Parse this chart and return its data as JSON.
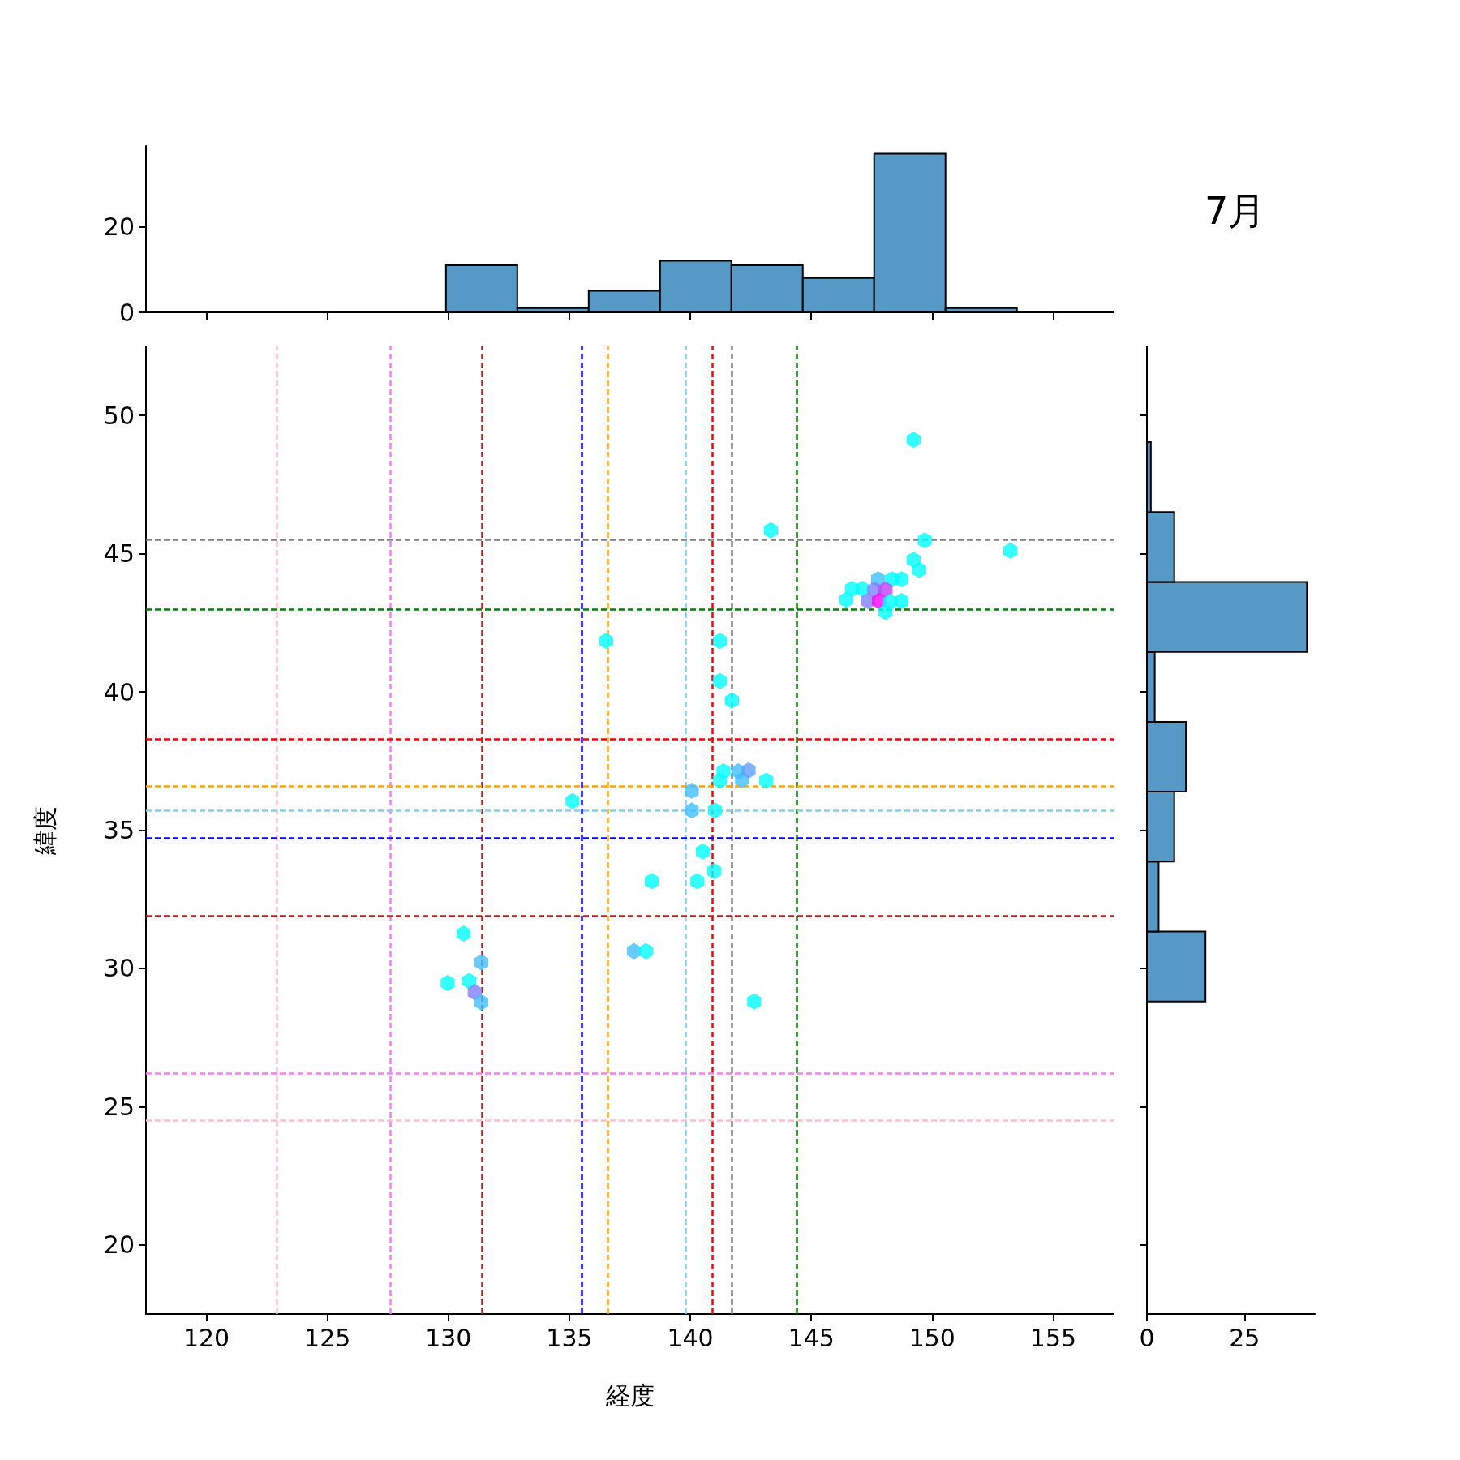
{
  "chart_data": [
    {
      "type": "histogram",
      "bins": [
        129.9,
        132.85,
        135.8,
        138.75,
        141.7,
        144.65,
        147.6,
        150.55,
        153.5
      ],
      "values": [
        11,
        1,
        5,
        12,
        11,
        8,
        37,
        1
      ],
      "color": "#5799c6",
      "xlim": [
        117.5,
        157.5
      ],
      "xticks": [
        120,
        125,
        130,
        135,
        140,
        145,
        150,
        155
      ],
      "ylim": [
        0,
        38.8
      ],
      "yticks": [
        0,
        20
      ],
      "tick_labels": "y"
    },
    {
      "type": "scatter",
      "xlabel": "経度",
      "ylabel": "緯度",
      "xlim": [
        117.5,
        157.5
      ],
      "ylim": [
        17.5,
        52.5
      ],
      "xticks": [
        120,
        125,
        130,
        135,
        140,
        145,
        150,
        155
      ],
      "yticks": [
        20,
        25,
        30,
        35,
        40,
        45,
        50
      ],
      "x": [
        149.23,
        143.33,
        149.69,
        153.23,
        149.23,
        149.46,
        147.76,
        148.34,
        148.73,
        146.68,
        147.11,
        147.61,
        148.07,
        146.45,
        147.34,
        147.8,
        148.26,
        148.73,
        148.07,
        136.52,
        141.22,
        141.22,
        141.72,
        141.37,
        141.22,
        141.99,
        142.14,
        142.41,
        143.14,
        141.02,
        140.06,
        135.13,
        140.06,
        140.52,
        138.41,
        140.29,
        140.99,
        130.63,
        131.36,
        137.67,
        138.17,
        129.97,
        130.86,
        131.09,
        131.36,
        142.64
      ],
      "values": [
        49.12,
        45.85,
        45.48,
        45.11,
        44.78,
        44.41,
        44.07,
        44.07,
        44.07,
        43.73,
        43.73,
        43.7,
        43.7,
        43.33,
        43.29,
        43.29,
        43.26,
        43.29,
        42.89,
        41.84,
        41.84,
        40.39,
        39.69,
        37.13,
        36.79,
        37.13,
        36.82,
        37.16,
        36.79,
        35.71,
        36.42,
        36.05,
        35.71,
        34.23,
        33.15,
        33.15,
        33.52,
        31.26,
        30.22,
        30.62,
        30.62,
        29.47,
        29.54,
        29.14,
        28.77,
        28.8
      ],
      "colors": [
        "#00ffff",
        "#00ffff",
        "#00ffff",
        "#00ffff",
        "#00ffff",
        "#00ffff",
        "#40bfff",
        "#00ffff",
        "#00ffff",
        "#00ffff",
        "#00ffff",
        "#8080ff",
        "#c040ff",
        "#00ffff",
        "#8080ff",
        "#ff00ff",
        "#00ffff",
        "#00ffff",
        "#00ffff",
        "#00ffff",
        "#00ffff",
        "#00ffff",
        "#00ffff",
        "#00ffff",
        "#00ffff",
        "#40bfff",
        "#40bfff",
        "#60a0ff",
        "#00ffff",
        "#00ffff",
        "#40bfff",
        "#00ffff",
        "#40bfff",
        "#00ffff",
        "#00ffff",
        "#00ffff",
        "#00ffff",
        "#00ffff",
        "#40bfff",
        "#40bfff",
        "#00ffff",
        "#00ffff",
        "#00ffff",
        "#8080ff",
        "#40bfff",
        "#00ffff"
      ],
      "ref_lines": [
        {
          "axis": "x",
          "value": 122.9,
          "color": "#ffc0cb",
          "line_style": "dashed"
        },
        {
          "axis": "x",
          "value": 127.6,
          "color": "#ee82ee",
          "line_style": "dashed"
        },
        {
          "axis": "x",
          "value": 131.4,
          "color": "#b22222",
          "line_style": "dashed"
        },
        {
          "axis": "x",
          "value": 135.5,
          "color": "#0000ff",
          "line_style": "dashed"
        },
        {
          "axis": "x",
          "value": 136.6,
          "color": "#ffa500",
          "line_style": "dashed"
        },
        {
          "axis": "x",
          "value": 139.8,
          "color": "#87ceeb",
          "line_style": "dashed"
        },
        {
          "axis": "x",
          "value": 140.9,
          "color": "#ff0000",
          "line_style": "dashed"
        },
        {
          "axis": "x",
          "value": 141.7,
          "color": "#808080",
          "line_style": "dashed"
        },
        {
          "axis": "x",
          "value": 144.4,
          "color": "#008000",
          "line_style": "dashed"
        },
        {
          "axis": "y",
          "value": 24.5,
          "color": "#ffc0cb",
          "line_style": "dashed"
        },
        {
          "axis": "y",
          "value": 26.2,
          "color": "#ee82ee",
          "line_style": "dashed"
        },
        {
          "axis": "y",
          "value": 31.9,
          "color": "#b22222",
          "line_style": "dashed"
        },
        {
          "axis": "y",
          "value": 34.7,
          "color": "#0000ff",
          "line_style": "dashed"
        },
        {
          "axis": "y",
          "value": 36.6,
          "color": "#ffa500",
          "line_style": "dashed"
        },
        {
          "axis": "y",
          "value": 35.7,
          "color": "#87ceeb",
          "line_style": "dashed"
        },
        {
          "axis": "y",
          "value": 38.3,
          "color": "#ff0000",
          "line_style": "dashed"
        },
        {
          "axis": "y",
          "value": 45.5,
          "color": "#808080",
          "line_style": "dashed"
        },
        {
          "axis": "y",
          "value": 43.0,
          "color": "#008000",
          "line_style": "dashed"
        }
      ]
    },
    {
      "type": "histogram",
      "title": "7月",
      "orientation": "horizontal",
      "bins": [
        28.8,
        31.33,
        33.86,
        36.39,
        38.92,
        41.45,
        43.98,
        46.51,
        49.04
      ],
      "values": [
        15,
        3,
        7,
        10,
        2,
        41,
        7,
        1
      ],
      "color": "#5799c6",
      "xlim": [
        0,
        43
      ],
      "xticks": [
        0,
        25
      ],
      "ylim": [
        17.5,
        52.5
      ],
      "yticks": [
        20,
        25,
        30,
        35,
        40,
        45,
        50
      ],
      "tick_labels": "x"
    }
  ]
}
